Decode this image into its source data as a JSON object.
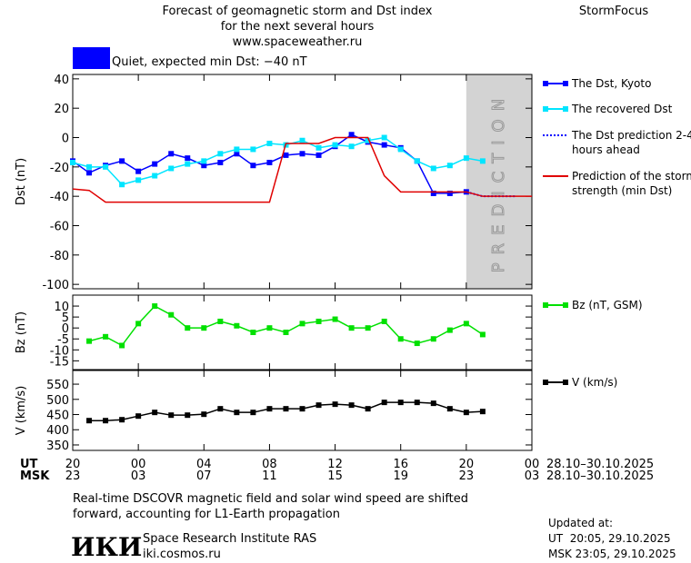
{
  "header": {
    "title_lines": [
      "Forecast of geomagnetic storm and Dst index",
      "for the next several hours",
      "www.spaceweather.ru"
    ],
    "brand": "StormFocus"
  },
  "status": {
    "label": "Quiet, expected min Dst: −40 nT",
    "color": "#0000ff"
  },
  "time_axis": {
    "xlim": [
      0,
      28
    ],
    "ut": {
      "name": "UT",
      "range": "28.10–30.10.2025",
      "ticks": [
        {
          "value": 0,
          "label": "20"
        },
        {
          "value": 4,
          "label": "00"
        },
        {
          "value": 8,
          "label": "04"
        },
        {
          "value": 12,
          "label": "08"
        },
        {
          "value": 16,
          "label": "12"
        },
        {
          "value": 20,
          "label": "16"
        },
        {
          "value": 24,
          "label": "20"
        },
        {
          "value": 28,
          "label": "00"
        }
      ]
    },
    "msk": {
      "name": "MSK",
      "range": "28.10–30.10.2025",
      "ticks": [
        {
          "value": 0,
          "label": "23"
        },
        {
          "value": 4,
          "label": "03"
        },
        {
          "value": 8,
          "label": "07"
        },
        {
          "value": 12,
          "label": "11"
        },
        {
          "value": 16,
          "label": "15"
        },
        {
          "value": 20,
          "label": "19"
        },
        {
          "value": 24,
          "label": "23"
        },
        {
          "value": 28,
          "label": "03"
        }
      ]
    }
  },
  "chart_data": [
    {
      "type": "line",
      "y_label": "Dst (nT)",
      "ylim": [
        -103,
        43
      ],
      "yticks": [
        40,
        20,
        0,
        -20,
        -40,
        -60,
        -80,
        -100
      ],
      "prediction_zone": {
        "from": 24,
        "to": 28,
        "label": "PREDICTION",
        "color": "#d3d3d3"
      },
      "series": [
        {
          "name": "The Dst, Kyoto",
          "color": "#0000ff",
          "marker": "square",
          "x": [
            0,
            1,
            2,
            3,
            4,
            5,
            6,
            7,
            8,
            9,
            10,
            11,
            12,
            13,
            14,
            15,
            16,
            17,
            18,
            19,
            20,
            21,
            22,
            23,
            24
          ],
          "values": [
            -16,
            -24,
            -19,
            -16,
            -23,
            -18,
            -11,
            -14,
            -19,
            -17,
            -11,
            -19,
            -17,
            -12,
            -11,
            -12,
            -6,
            2,
            -3,
            -5,
            -7,
            -16,
            -38,
            -38,
            -37
          ]
        },
        {
          "name": "The recovered Dst",
          "color": "#00e5ff",
          "marker": "square",
          "x": [
            0,
            1,
            2,
            3,
            4,
            5,
            6,
            7,
            8,
            9,
            10,
            11,
            12,
            13,
            14,
            15,
            16,
            17,
            18,
            19,
            20,
            21,
            22,
            23,
            24,
            25
          ],
          "values": [
            -17,
            -20,
            -20,
            -32,
            -29,
            -26,
            -21,
            -18,
            -16,
            -11,
            -8,
            -8,
            -4,
            -5,
            -2,
            -7,
            -5,
            -6,
            -2,
            0,
            -8,
            -16,
            -21,
            -19,
            -14,
            -16
          ]
        },
        {
          "name": "The Dst prediction 2-4 hours ahead",
          "color": "#0000ff",
          "dash": "dotted",
          "x": [
            24,
            25,
            26,
            27
          ],
          "values": [
            -37,
            -40,
            -40,
            -40
          ]
        },
        {
          "name": "Prediction of the storm strength (min Dst)",
          "color": "#e00000",
          "x": [
            0,
            1,
            2,
            12,
            13,
            15,
            16,
            18,
            19,
            20,
            24,
            25,
            28
          ],
          "values": [
            -35,
            -36,
            -44,
            -44,
            -4,
            -4,
            0,
            0,
            -26,
            -37,
            -37,
            -40,
            -40
          ]
        }
      ]
    },
    {
      "type": "line",
      "y_label": "Bz (nT)",
      "ylim": [
        -19,
        15
      ],
      "yticks": [
        10,
        5,
        0,
        -5,
        -10,
        -15
      ],
      "series": [
        {
          "name": "Bz (nT, GSM)",
          "color": "#00e000",
          "marker": "square",
          "x": [
            1,
            2,
            3,
            4,
            5,
            6,
            7,
            8,
            9,
            10,
            11,
            12,
            13,
            14,
            15,
            16,
            17,
            18,
            19,
            20,
            21,
            22,
            23,
            24,
            25
          ],
          "values": [
            -6,
            -4,
            -8,
            2,
            10,
            6,
            0,
            0,
            3,
            1,
            -2,
            0,
            -2,
            2,
            3,
            4,
            0,
            0,
            3,
            -5,
            -7,
            -5,
            -1,
            2,
            -3
          ]
        }
      ]
    },
    {
      "type": "line",
      "y_label": "V (km/s)",
      "ylim": [
        332,
        595
      ],
      "yticks": [
        550,
        500,
        450,
        400,
        350
      ],
      "series": [
        {
          "name": "V (km/s)",
          "color": "#000000",
          "marker": "square",
          "x": [
            1,
            2,
            3,
            4,
            5,
            6,
            7,
            8,
            9,
            10,
            11,
            12,
            13,
            14,
            15,
            16,
            17,
            18,
            19,
            20,
            21,
            22,
            23,
            24,
            25
          ],
          "values": [
            430,
            430,
            433,
            445,
            457,
            448,
            448,
            451,
            469,
            457,
            457,
            469,
            469,
            469,
            481,
            484,
            481,
            469,
            490,
            490,
            490,
            487,
            469,
            457,
            460
          ]
        }
      ]
    }
  ],
  "footer": {
    "note_lines": [
      "Real-time DSCOVR magnetic field and solar wind speed are shifted",
      "forward, accounting for L1-Earth propagation"
    ],
    "logo": "ИКИ",
    "institute": "Space Research Institute RAS",
    "site": "iki.cosmos.ru",
    "updated": [
      "Updated at:",
      "UT  20:05, 29.10.2025",
      "MSK 23:05, 29.10.2025"
    ]
  }
}
